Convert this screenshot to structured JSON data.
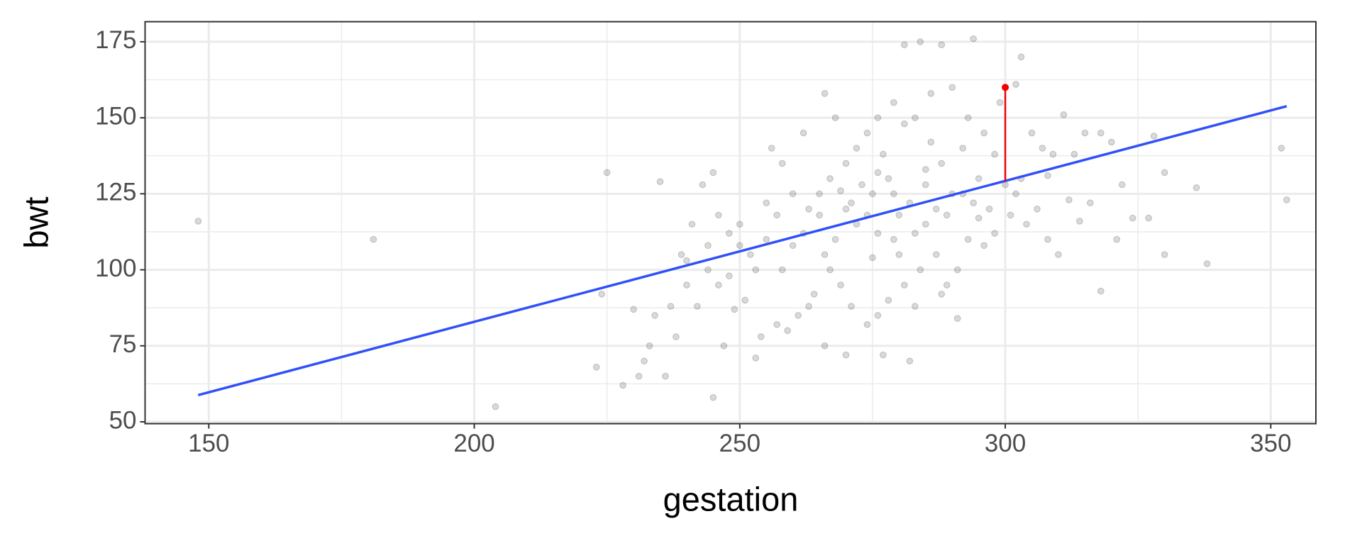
{
  "chart_data": {
    "type": "scatter",
    "xlabel": "gestation",
    "ylabel": "bwt",
    "xlim": [
      138,
      358.5
    ],
    "ylim": [
      49.4,
      181.6
    ],
    "xticks": [
      150,
      200,
      250,
      300,
      350
    ],
    "yticks": [
      50,
      75,
      100,
      125,
      150,
      175
    ],
    "xminor": [
      175,
      225,
      275,
      325
    ],
    "yminor": [
      62.5,
      87.5,
      112.5,
      137.5,
      162.5
    ],
    "grid": true,
    "points": {
      "color": "#000000",
      "x": [
        148,
        181,
        204,
        225,
        224,
        223,
        228,
        245,
        338,
        353,
        352,
        336,
        330,
        330,
        318,
        308,
        321,
        327,
        294,
        288,
        281,
        284,
        270,
        272,
        275,
        278,
        280,
        282,
        285,
        288,
        290,
        292,
        268,
        266,
        265,
        262,
        260,
        258,
        255,
        252,
        250,
        248,
        246,
        244,
        242,
        240,
        238,
        236,
        233,
        234,
        232,
        230,
        272,
        274,
        276,
        279,
        283,
        286,
        290,
        293,
        296,
        298,
        300,
        302,
        304,
        306,
        308,
        310,
        312,
        314,
        316,
        318,
        320,
        322,
        324,
        328,
        295,
        297,
        293,
        291,
        289,
        287,
        284,
        281,
        278,
        276,
        274,
        271,
        269,
        267,
        264,
        263,
        261,
        259,
        257,
        254,
        253,
        251,
        249,
        247,
        245,
        243,
        241,
        239,
        256,
        258,
        262,
        266,
        268,
        270,
        277,
        279,
        280,
        283,
        285,
        287,
        289,
        292,
        294,
        296,
        298,
        301,
        303,
        305,
        307,
        309,
        311,
        313,
        315,
        299,
        302,
        303,
        286,
        281,
        276,
        273,
        271,
        269,
        267,
        265,
        263,
        260,
        257,
        255,
        253,
        250,
        248,
        246,
        244,
        240,
        235,
        237,
        231,
        282,
        277,
        266,
        270,
        275,
        283,
        288,
        291,
        295,
        285,
        279,
        274,
        276
      ],
      "y": [
        116,
        110,
        55,
        132,
        92,
        68,
        62,
        58,
        102,
        123,
        140,
        127,
        132,
        105,
        93,
        131,
        110,
        117,
        176,
        174,
        174,
        175,
        120,
        115,
        125,
        130,
        118,
        122,
        128,
        135,
        125,
        140,
        110,
        105,
        118,
        112,
        108,
        100,
        110,
        105,
        115,
        98,
        95,
        100,
        88,
        103,
        78,
        65,
        75,
        85,
        70,
        87,
        140,
        145,
        150,
        155,
        150,
        158,
        160,
        150,
        145,
        138,
        128,
        125,
        115,
        120,
        110,
        105,
        123,
        116,
        122,
        145,
        142,
        128,
        117,
        144,
        130,
        120,
        110,
        100,
        95,
        105,
        100,
        95,
        90,
        85,
        82,
        88,
        95,
        100,
        92,
        88,
        85,
        80,
        82,
        78,
        71,
        90,
        87,
        75,
        132,
        128,
        115,
        105,
        140,
        135,
        145,
        158,
        150,
        135,
        138,
        110,
        105,
        112,
        115,
        120,
        118,
        125,
        122,
        108,
        112,
        118,
        130,
        145,
        140,
        138,
        151,
        138,
        145,
        155,
        161,
        170,
        142,
        148,
        132,
        128,
        122,
        126,
        130,
        125,
        120,
        125,
        118,
        122,
        100,
        108,
        112,
        118,
        108,
        95,
        129,
        88,
        65,
        70,
        72,
        75,
        72,
        104,
        88,
        92,
        84,
        117,
        133,
        125,
        118,
        112
      ]
    },
    "fit": {
      "color": "#3050f8",
      "x": [
        148,
        353
      ],
      "y": [
        58.8,
        153.8
      ]
    },
    "highlight": {
      "color": "#f00000",
      "x": 300,
      "y": 160,
      "fitted": 129.2
    }
  }
}
